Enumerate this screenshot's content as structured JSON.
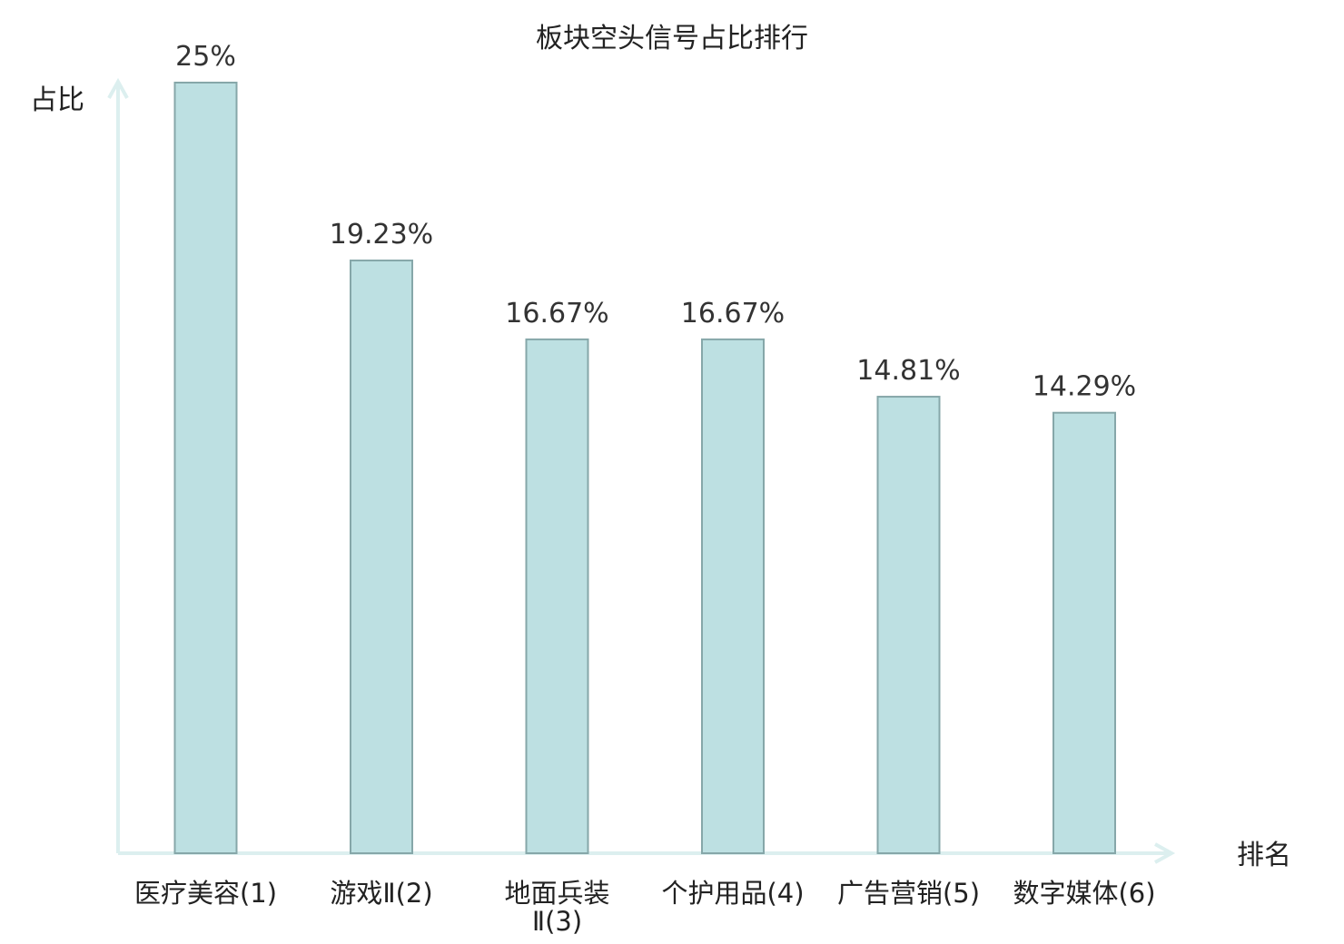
{
  "chart_data": {
    "type": "bar",
    "title": "板块空头信号占比排行",
    "ylabel": "占比",
    "xlabel": "排名",
    "ylim": [
      0,
      25
    ],
    "grid": false,
    "bar_color": "#bde0e2",
    "bar_stroke": "#86a7a9",
    "axis_color": "#dcefef",
    "highlight_color": "#e8191a",
    "categories": [
      {
        "lines": [
          "医疗美容(1)"
        ],
        "highlight": false
      },
      {
        "lines": [
          "游戏Ⅱ(2)"
        ],
        "highlight": false
      },
      {
        "lines": [
          "地面兵装",
          "Ⅱ(3)"
        ],
        "highlight": false
      },
      {
        "lines": [
          "个护用品(4)"
        ],
        "highlight": false
      },
      {
        "lines": [
          "广告营销(5)"
        ],
        "highlight": false
      },
      {
        "lines": [
          "数字媒体(6)"
        ],
        "highlight": true
      }
    ],
    "values": [
      25,
      19.23,
      16.67,
      16.67,
      14.81,
      14.29
    ],
    "value_labels": [
      "25%",
      "19.23%",
      "16.67%",
      "16.67%",
      "14.81%",
      "14.29%"
    ]
  }
}
